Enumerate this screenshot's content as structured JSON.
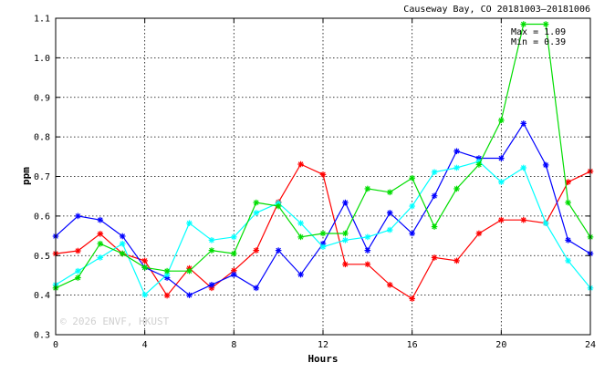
{
  "chart_data": {
    "type": "line",
    "title": "Causeway Bay, CO 20181003–20181006",
    "xlabel": "Hours",
    "ylabel": "ppm",
    "xlim": [
      0,
      24
    ],
    "ylim": [
      0.3,
      1.1
    ],
    "x_ticks": [
      0,
      4,
      8,
      12,
      16,
      20,
      24
    ],
    "y_ticks": [
      0.3,
      0.4,
      0.5,
      0.6,
      0.7,
      0.8,
      0.9,
      1.0,
      1.1
    ],
    "y_tick_labels": [
      "0.3",
      "0.4",
      "0.5",
      "0.6",
      "0.7",
      "0.8",
      "0.9",
      "1.0",
      "1.1"
    ],
    "grid": true,
    "x": [
      0,
      1,
      2,
      3,
      4,
      5,
      6,
      7,
      8,
      9,
      10,
      11,
      12,
      13,
      14,
      15,
      16,
      17,
      18,
      19,
      20,
      21,
      22,
      23,
      24
    ],
    "series": [
      {
        "color": "#ff0000",
        "values": [
          0.505,
          0.512,
          0.555,
          0.505,
          0.487,
          0.399,
          0.468,
          0.418,
          0.462,
          0.513,
          0.635,
          0.731,
          0.705,
          0.478,
          0.478,
          0.426,
          0.391,
          0.495,
          0.487,
          0.556,
          0.59,
          0.59,
          0.582,
          0.686,
          0.713
        ]
      },
      {
        "color": "#0000ff",
        "values": [
          0.549,
          0.6,
          0.59,
          0.549,
          0.47,
          0.444,
          0.4,
          0.426,
          0.452,
          0.418,
          0.513,
          0.452,
          0.53,
          0.634,
          0.513,
          0.608,
          0.556,
          0.651,
          0.764,
          0.746,
          0.746,
          0.834,
          0.729,
          0.539,
          0.505
        ]
      },
      {
        "color": "#00ffff",
        "values": [
          0.426,
          0.461,
          0.495,
          0.53,
          0.401,
          0.452,
          0.582,
          0.539,
          0.547,
          0.608,
          0.633,
          0.582,
          0.522,
          0.539,
          0.547,
          0.565,
          0.625,
          0.711,
          0.722,
          0.738,
          0.686,
          0.722,
          0.582,
          0.487,
          0.418
        ]
      },
      {
        "color": "#00dd00",
        "values": [
          0.418,
          0.444,
          0.53,
          0.505,
          0.47,
          0.461,
          0.461,
          0.513,
          0.505,
          0.634,
          0.625,
          0.547,
          0.556,
          0.556,
          0.669,
          0.66,
          0.696,
          0.573,
          0.669,
          0.73,
          0.842,
          1.085,
          1.085,
          0.634,
          0.547
        ]
      }
    ],
    "annotations": {
      "max": "Max = 1.09",
      "min": "Min = 0.39"
    },
    "watermark": "© 2026  ENVF, HKUST"
  }
}
